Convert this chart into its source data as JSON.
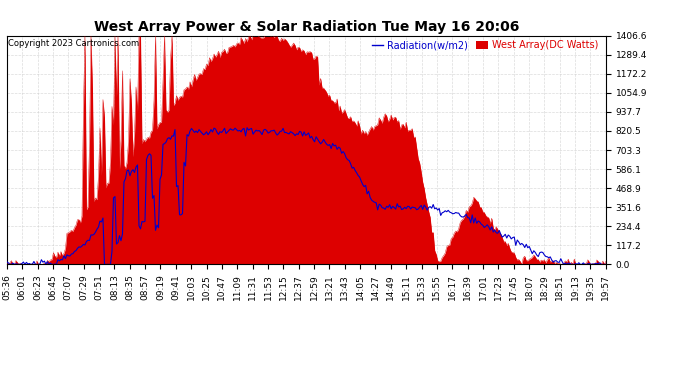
{
  "title": "West Array Power & Solar Radiation Tue May 16 20:06",
  "copyright": "Copyright 2023 Cartronics.com",
  "legend_radiation": "Radiation(w/m2)",
  "legend_west": "West Array(DC Watts)",
  "ylabel_right_values": [
    0.0,
    117.2,
    234.4,
    351.6,
    468.9,
    586.1,
    703.3,
    820.5,
    937.7,
    1054.9,
    1172.2,
    1289.4,
    1406.6
  ],
  "ymax": 1406.6,
  "ymin": 0.0,
  "background_color": "#ffffff",
  "plot_bg_color": "#ffffff",
  "grid_color": "#cccccc",
  "radiation_fill_color": "#dd0000",
  "radiation_line_color": "#dd0000",
  "west_line_color": "#0000cc",
  "title_fontsize": 10,
  "tick_fontsize": 6.5,
  "legend_fontsize": 7,
  "copyright_fontsize": 6,
  "x_tick_labels": [
    "05:36",
    "06:01",
    "06:23",
    "06:45",
    "07:07",
    "07:29",
    "07:51",
    "08:13",
    "08:35",
    "08:57",
    "09:19",
    "09:41",
    "10:03",
    "10:25",
    "10:47",
    "11:09",
    "11:31",
    "11:53",
    "12:15",
    "12:37",
    "12:59",
    "13:21",
    "13:43",
    "14:05",
    "14:27",
    "14:49",
    "15:11",
    "15:33",
    "15:55",
    "16:17",
    "16:39",
    "17:01",
    "17:23",
    "17:45",
    "18:07",
    "18:29",
    "18:51",
    "19:13",
    "19:35",
    "19:57"
  ],
  "n_points": 400
}
